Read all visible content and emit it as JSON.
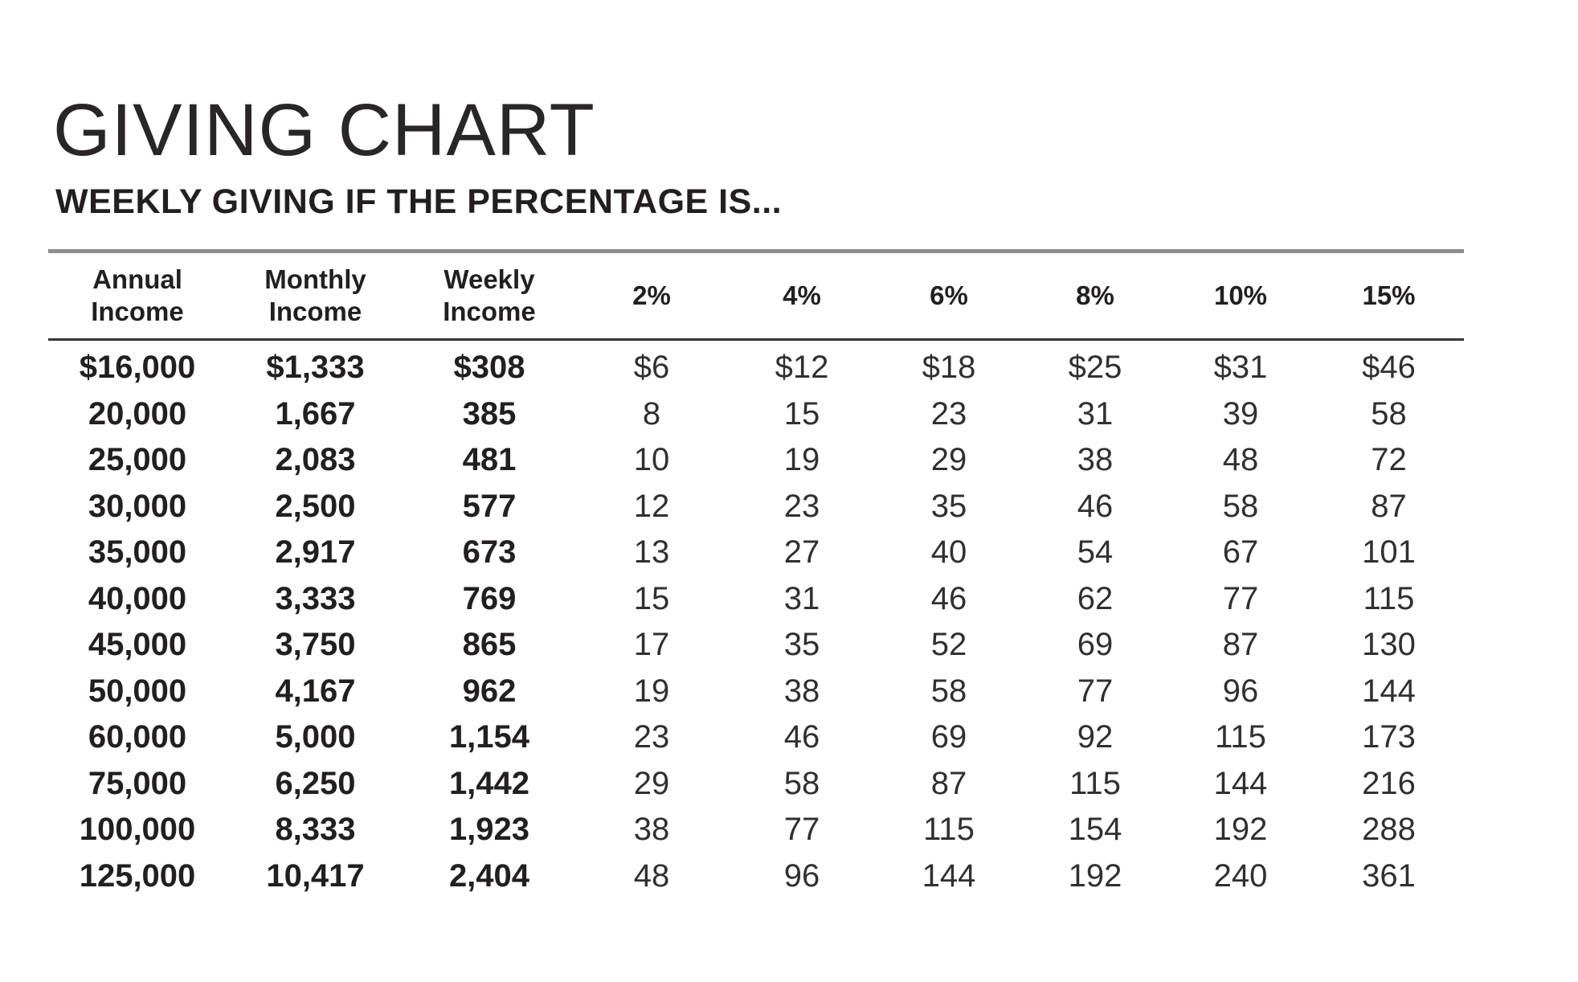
{
  "page": {
    "title": "GIVING CHART",
    "subtitle": "WEEKLY GIVING IF THE PERCENTAGE IS..."
  },
  "colors": {
    "background": "#ffffff",
    "text": "#231f20",
    "top_rule": "#8d8d8d",
    "header_rule": "#343434"
  },
  "table": {
    "headers": [
      {
        "l1": "Annual",
        "l2": "Income"
      },
      {
        "l1": "Monthly",
        "l2": "Income"
      },
      {
        "l1": "Weekly",
        "l2": "Income"
      },
      {
        "l1": "2%",
        "l2": ""
      },
      {
        "l1": "4%",
        "l2": ""
      },
      {
        "l1": "6%",
        "l2": ""
      },
      {
        "l1": "8%",
        "l2": ""
      },
      {
        "l1": "10%",
        "l2": ""
      },
      {
        "l1": "15%",
        "l2": ""
      }
    ],
    "rows": [
      [
        "$16,000",
        "$1,333",
        "$308",
        "$6",
        "$12",
        "$18",
        "$25",
        "$31",
        "$46"
      ],
      [
        "20,000",
        "1,667",
        "385",
        "8",
        "15",
        "23",
        "31",
        "39",
        "58"
      ],
      [
        "25,000",
        "2,083",
        "481",
        "10",
        "19",
        "29",
        "38",
        "48",
        "72"
      ],
      [
        "30,000",
        "2,500",
        "577",
        "12",
        "23",
        "35",
        "46",
        "58",
        "87"
      ],
      [
        "35,000",
        "2,917",
        "673",
        "13",
        "27",
        "40",
        "54",
        "67",
        "101"
      ],
      [
        "40,000",
        "3,333",
        "769",
        "15",
        "31",
        "46",
        "62",
        "77",
        "115"
      ],
      [
        "45,000",
        "3,750",
        "865",
        "17",
        "35",
        "52",
        "69",
        "87",
        "130"
      ],
      [
        "50,000",
        "4,167",
        "962",
        "19",
        "38",
        "58",
        "77",
        "96",
        "144"
      ],
      [
        "60,000",
        "5,000",
        "1,154",
        "23",
        "46",
        "69",
        "92",
        "115",
        "173"
      ],
      [
        "75,000",
        "6,250",
        "1,442",
        "29",
        "58",
        "87",
        "115",
        "144",
        "216"
      ],
      [
        "100,000",
        "8,333",
        "1,923",
        "38",
        "77",
        "115",
        "154",
        "192",
        "288"
      ],
      [
        "125,000",
        "10,417",
        "2,404",
        "48",
        "96",
        "144",
        "192",
        "240",
        "361"
      ]
    ]
  },
  "chart_data": {
    "type": "table",
    "title": "GIVING CHART",
    "subtitle": "WEEKLY GIVING IF THE PERCENTAGE IS...",
    "columns": [
      "Annual Income",
      "Monthly Income",
      "Weekly Income",
      "2%",
      "4%",
      "6%",
      "8%",
      "10%",
      "15%"
    ],
    "annual_income": [
      16000,
      20000,
      25000,
      30000,
      35000,
      40000,
      45000,
      50000,
      60000,
      75000,
      100000,
      125000
    ],
    "monthly_income": [
      1333,
      1667,
      2083,
      2500,
      2917,
      3333,
      3750,
      4167,
      5000,
      6250,
      8333,
      10417
    ],
    "weekly_income": [
      308,
      385,
      481,
      577,
      673,
      769,
      865,
      962,
      1154,
      1442,
      1923,
      2404
    ],
    "pct_2": [
      6,
      8,
      10,
      12,
      13,
      15,
      17,
      19,
      23,
      29,
      38,
      48
    ],
    "pct_4": [
      12,
      15,
      19,
      23,
      27,
      31,
      35,
      38,
      46,
      58,
      77,
      96
    ],
    "pct_6": [
      18,
      23,
      29,
      35,
      40,
      46,
      52,
      58,
      69,
      87,
      115,
      144
    ],
    "pct_8": [
      25,
      31,
      38,
      46,
      54,
      62,
      69,
      77,
      92,
      115,
      154,
      192
    ],
    "pct_10": [
      31,
      39,
      48,
      58,
      67,
      77,
      87,
      96,
      115,
      144,
      192,
      240
    ],
    "pct_15": [
      46,
      58,
      72,
      87,
      101,
      115,
      130,
      144,
      173,
      216,
      288,
      361
    ]
  }
}
